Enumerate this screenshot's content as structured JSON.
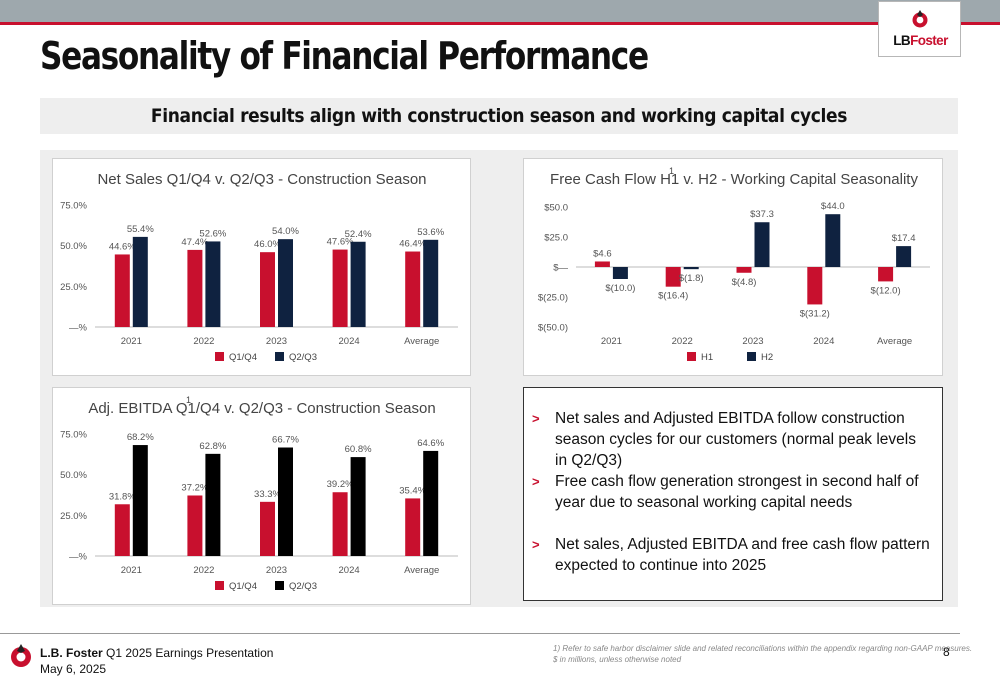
{
  "header": {
    "title": "Seasonality of Financial Performance",
    "subtitle": "Financial results align with construction season and working capital cycles",
    "logo_text": "LB",
    "logo_text_accent": "Foster"
  },
  "colors": {
    "accent_red": "#c8102e",
    "navy": "#0f2240",
    "black": "#000000",
    "topbar_gray": "#9ea8ad"
  },
  "chart_data": [
    {
      "type": "bar",
      "title": "Net Sales Q1/Q4 v. Q2/Q3 - Construction Season",
      "title_sup": "",
      "categories": [
        "2021",
        "2022",
        "2023",
        "2024",
        "Average"
      ],
      "series": [
        {
          "name": "Q1/Q4",
          "color": "#c8102e",
          "values": [
            44.6,
            47.4,
            46.0,
            47.6,
            46.4
          ],
          "labels": [
            "44.6%",
            "47.4%",
            "46.0%",
            "47.6%",
            "46.4%"
          ]
        },
        {
          "name": "Q2/Q3",
          "color": "#0f2240",
          "values": [
            55.4,
            52.6,
            54.0,
            52.4,
            53.6
          ],
          "labels": [
            "55.4%",
            "52.6%",
            "54.0%",
            "52.4%",
            "53.6%"
          ]
        }
      ],
      "yticks": [
        0,
        25,
        50,
        75
      ],
      "ytick_labels": [
        "—%",
        "25.0%",
        "50.0%",
        "75.0%"
      ],
      "ylim": [
        0,
        75
      ],
      "legend": "bottom"
    },
    {
      "type": "bar",
      "title": "Free Cash Flow H1 v. H2 - Working Capital Seasonality",
      "title_sup": "1",
      "categories": [
        "2021",
        "2022",
        "2023",
        "2024",
        "Average"
      ],
      "series": [
        {
          "name": "H1",
          "color": "#c8102e",
          "values": [
            4.6,
            -16.4,
            -4.8,
            -31.2,
            -12.0
          ],
          "labels": [
            "$4.6",
            "$(16.4)",
            "$(4.8)",
            "$(31.2)",
            "$(12.0)"
          ]
        },
        {
          "name": "H2",
          "color": "#0f2240",
          "values": [
            -10.0,
            -1.8,
            37.3,
            44.0,
            17.4
          ],
          "labels": [
            "$(10.0)",
            "$(1.8)",
            "$37.3",
            "$44.0",
            "$17.4"
          ]
        }
      ],
      "yticks": [
        -50,
        -25,
        0,
        25,
        50
      ],
      "ytick_labels": [
        "$(50.0)",
        "$(25.0)",
        "$—",
        "$25.0",
        "$50.0"
      ],
      "ylim": [
        -50,
        50
      ],
      "legend": "bottom"
    },
    {
      "type": "bar",
      "title": "Adj. EBITDA Q1/Q4 v. Q2/Q3 - Construction Season",
      "title_sup": "1",
      "categories": [
        "2021",
        "2022",
        "2023",
        "2024",
        "Average"
      ],
      "series": [
        {
          "name": "Q1/Q4",
          "color": "#c8102e",
          "values": [
            31.8,
            37.2,
            33.3,
            39.2,
            35.4
          ],
          "labels": [
            "31.8%",
            "37.2%",
            "33.3%",
            "39.2%",
            "35.4%"
          ]
        },
        {
          "name": "Q2/Q3",
          "color": "#000000",
          "values": [
            68.2,
            62.8,
            66.7,
            60.8,
            64.6
          ],
          "labels": [
            "68.2%",
            "62.8%",
            "66.7%",
            "60.8%",
            "64.6%"
          ]
        }
      ],
      "yticks": [
        0,
        25,
        50,
        75
      ],
      "ytick_labels": [
        "—%",
        "25.0%",
        "50.0%",
        "75.0%"
      ],
      "ylim": [
        0,
        75
      ],
      "legend": "bottom"
    }
  ],
  "bullets": [
    "Net sales and Adjusted EBITDA follow construction season cycles for our customers (normal peak levels in Q2/Q3)",
    "Free cash flow generation strongest in second half of year due to seasonal working capital needs",
    "Net sales, Adjusted EBITDA and free cash flow pattern expected to continue into 2025"
  ],
  "bullet_marker": ">",
  "footer": {
    "company": "L.B. Foster",
    "presentation": " Q1 2025 Earnings Presentation",
    "date": "May 6, 2025",
    "note1": "1) Refer to safe harbor disclaimer slide and related reconciliations within the appendix regarding non-GAAP measures.",
    "note2": "$ in millions, unless otherwise noted",
    "page": "8"
  }
}
